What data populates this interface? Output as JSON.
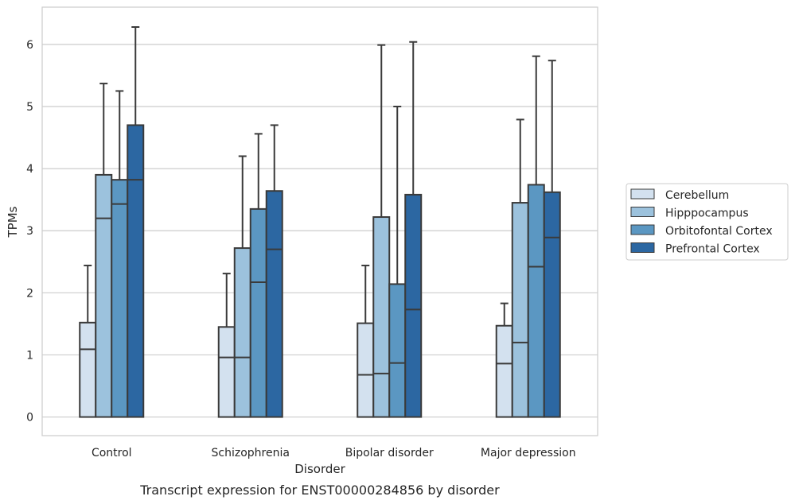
{
  "chart_data": {
    "type": "bar",
    "title": "Transcript expression for ENST00000284856 by disorder",
    "xlabel": "Disorder",
    "ylabel": "TPMs",
    "ylim": [
      -0.3,
      6.6
    ],
    "yticks": [
      "0",
      "1",
      "2",
      "3",
      "4",
      "5",
      "6"
    ],
    "grid": true,
    "legend_position": "right",
    "categories": [
      "Control",
      "Schizophrenia",
      "Bipolar disorder",
      "Major depression"
    ],
    "series": [
      {
        "name": "Cerebellum",
        "color": "#d3e1ef",
        "q1": [
          0.0,
          0.0,
          0.0,
          0.0
        ],
        "median": [
          1.09,
          0.96,
          0.68,
          0.86
        ],
        "q3": [
          1.52,
          1.45,
          1.51,
          1.47
        ],
        "whisker_low": [
          0.0,
          0.0,
          0.0,
          0.0
        ],
        "whisker_high": [
          2.44,
          2.31,
          2.44,
          1.83
        ]
      },
      {
        "name": "Hipppocampus",
        "color": "#9cc2dd",
        "q1": [
          0.0,
          0.0,
          0.0,
          0.0
        ],
        "median": [
          3.2,
          0.96,
          0.7,
          1.2
        ],
        "q3": [
          3.9,
          2.72,
          3.22,
          3.45
        ],
        "whisker_low": [
          0.0,
          0.0,
          0.0,
          0.0
        ],
        "whisker_high": [
          5.37,
          4.2,
          5.99,
          4.79
        ]
      },
      {
        "name": "Orbitofontal Cortex",
        "color": "#5b97c2",
        "q1": [
          0.0,
          0.0,
          0.0,
          0.0
        ],
        "median": [
          3.43,
          2.17,
          0.87,
          2.42
        ],
        "q3": [
          3.82,
          3.35,
          2.14,
          3.74
        ],
        "whisker_low": [
          0.0,
          0.0,
          0.0,
          0.0
        ],
        "whisker_high": [
          5.25,
          4.56,
          5.0,
          5.81
        ]
      },
      {
        "name": "Prefrontal Cortex",
        "color": "#2c67a2",
        "q1": [
          0.0,
          0.0,
          0.0,
          0.0
        ],
        "median": [
          3.82,
          2.7,
          1.73,
          2.89
        ],
        "q3": [
          4.7,
          3.64,
          3.58,
          3.62
        ],
        "whisker_low": [
          0.0,
          0.0,
          0.0,
          0.0
        ],
        "whisker_high": [
          6.28,
          4.7,
          6.04,
          5.74
        ]
      }
    ]
  }
}
